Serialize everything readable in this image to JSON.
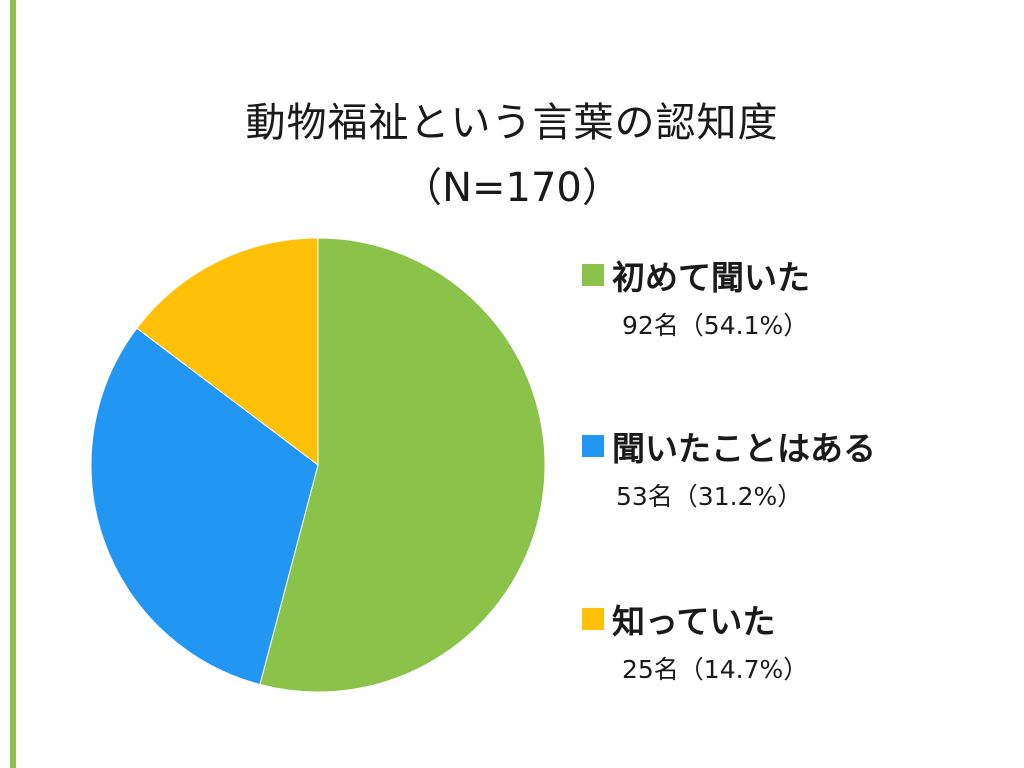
{
  "chart_data": {
    "type": "pie",
    "title": "動物福祉という言葉の認知度",
    "subtitle": "（N=170）",
    "total": 170,
    "legend_position": "right",
    "series": [
      {
        "name": "初めて聞いた",
        "count": 92,
        "percent": 54.1,
        "value_label": "92名（54.1%）",
        "color": "#8bc34a"
      },
      {
        "name": "聞いたことはある",
        "count": 53,
        "percent": 31.2,
        "value_label": "53名（31.2%）",
        "color": "#2196f3"
      },
      {
        "name": "知っていた",
        "count": 25,
        "percent": 14.7,
        "value_label": "25名（14.7%）",
        "color": "#ffc107"
      }
    ]
  }
}
